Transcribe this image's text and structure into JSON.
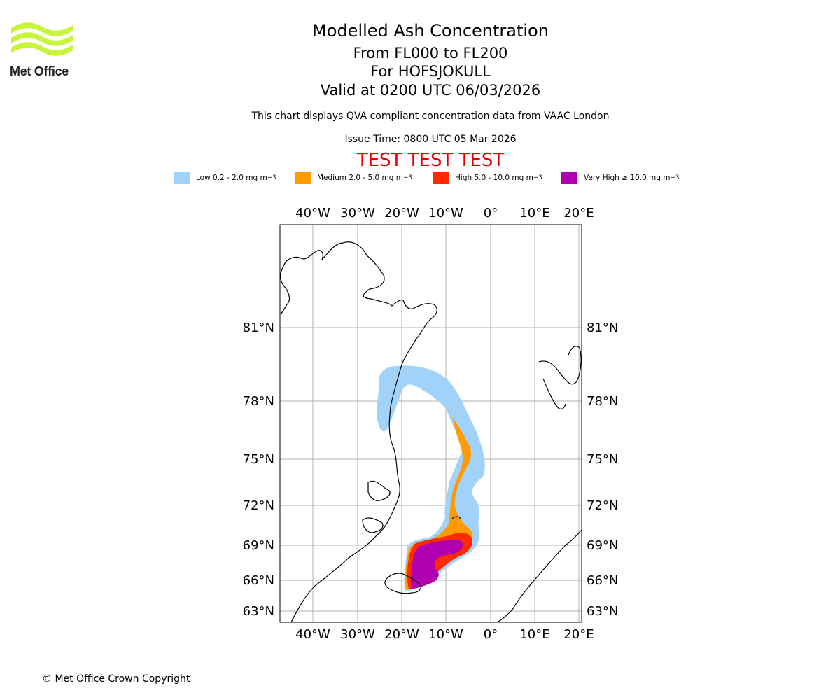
{
  "logo": {
    "name": "Met Office"
  },
  "title": {
    "main": "Modelled Ash Concentration",
    "levels": "From FL000 to FL200",
    "volcano": "For HOFSJOKULL",
    "valid": "Valid at 0200 UTC 06/03/2026"
  },
  "note": "This chart displays QVA compliant concentration data from VAAC London",
  "issue_time": "Issue Time: 0800 UTC 05 Mar 2026",
  "test_banner": "TEST TEST TEST",
  "legend": [
    {
      "label": "Low 0.2 - 2.0 mg m",
      "sup": "−3",
      "color": "#a0d2fa"
    },
    {
      "label": "Medium 2.0 - 5.0 mg m",
      "sup": "−3",
      "color": "#ff9a00"
    },
    {
      "label": "High 5.0 - 10.0 mg m",
      "sup": "−3",
      "color": "#ff2a00"
    },
    {
      "label": "Very High  ≥  10.0 mg m",
      "sup": "−3",
      "color": "#b000b0"
    }
  ],
  "map": {
    "longitude_labels": [
      "40°W",
      "30°W",
      "20°W",
      "10°W",
      "0°",
      "10°E",
      "20°E"
    ],
    "latitude_labels": [
      "81°N",
      "78°N",
      "75°N",
      "72°N",
      "69°N",
      "66°N",
      "63°N"
    ],
    "colors": {
      "grid": "#b0b0b0",
      "coast": "#000000"
    }
  },
  "copyright": "© Met Office Crown Copyright"
}
